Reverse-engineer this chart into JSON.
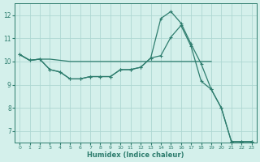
{
  "xlabel": "Humidex (Indice chaleur)",
  "background_color": "#d4f0eb",
  "grid_color": "#aed8d2",
  "line_color": "#2e7d6e",
  "xlim": [
    -0.5,
    23.5
  ],
  "ylim": [
    6.5,
    12.5
  ],
  "yticks": [
    7,
    8,
    9,
    10,
    11,
    12
  ],
  "xticks": [
    0,
    1,
    2,
    3,
    4,
    5,
    6,
    7,
    8,
    9,
    10,
    11,
    12,
    13,
    14,
    15,
    16,
    17,
    18,
    19,
    20,
    21,
    22,
    23
  ],
  "line1_x": [
    0,
    1,
    2,
    3,
    4,
    5,
    6,
    7,
    8,
    9,
    10,
    11,
    12,
    13,
    14,
    15,
    16,
    17,
    18,
    19
  ],
  "line1_y": [
    10.3,
    10.05,
    10.1,
    10.1,
    10.05,
    10.0,
    10.0,
    10.0,
    10.0,
    10.0,
    10.0,
    10.0,
    10.0,
    10.0,
    10.0,
    10.0,
    10.0,
    10.0,
    10.0,
    10.0
  ],
  "line2_x": [
    0,
    1,
    2,
    3,
    4,
    5,
    6,
    7,
    8,
    9,
    10,
    11,
    12,
    13,
    14,
    15,
    16,
    17,
    18,
    19,
    20,
    21,
    22,
    23
  ],
  "line2_y": [
    10.3,
    10.05,
    10.1,
    9.65,
    9.55,
    9.25,
    9.25,
    9.35,
    9.35,
    9.35,
    9.65,
    9.65,
    9.75,
    10.15,
    11.85,
    12.15,
    11.65,
    10.75,
    9.9,
    8.8,
    8.0,
    6.55,
    6.55,
    6.55
  ],
  "line3_x": [
    0,
    1,
    2,
    3,
    4,
    5,
    6,
    7,
    8,
    9,
    10,
    11,
    12,
    13,
    14,
    15,
    16,
    17,
    18,
    19,
    20,
    21,
    22,
    23
  ],
  "line3_y": [
    10.3,
    10.05,
    10.1,
    9.65,
    9.55,
    9.25,
    9.25,
    9.35,
    9.35,
    9.35,
    9.65,
    9.65,
    9.75,
    10.15,
    10.25,
    11.05,
    11.55,
    10.65,
    9.15,
    8.8,
    8.0,
    6.55,
    6.55,
    6.55
  ]
}
